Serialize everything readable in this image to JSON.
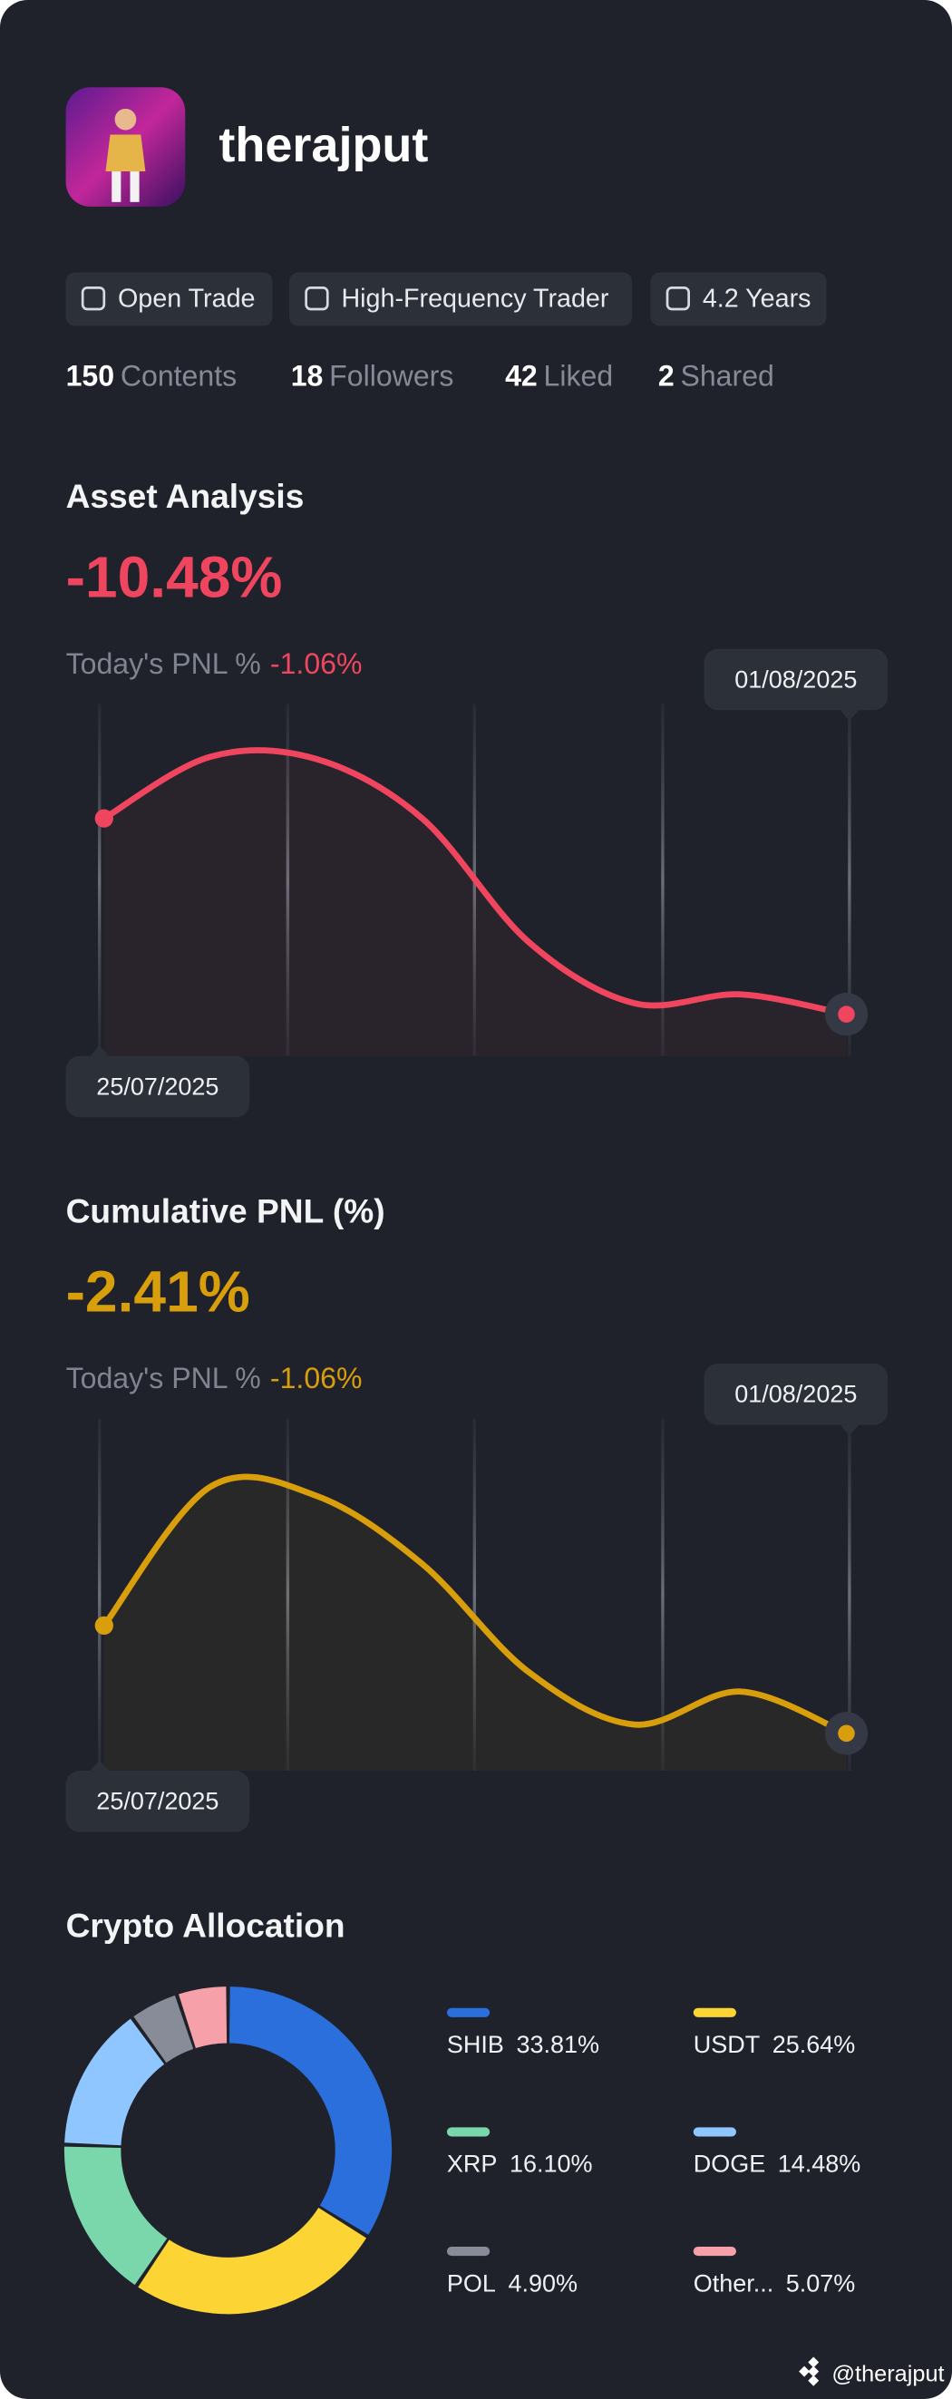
{
  "profile": {
    "username": "therajput",
    "tags": [
      "Open Trade",
      "High-Frequency Trader",
      "4.2 Years"
    ],
    "stats": [
      {
        "count": 150,
        "label": "Contents"
      },
      {
        "count": 18,
        "label": "Followers"
      },
      {
        "count": 42,
        "label": "Liked"
      },
      {
        "count": 2,
        "label": "Shared"
      }
    ]
  },
  "chart_data": [
    {
      "type": "line",
      "title": "Asset Analysis",
      "headline": "-10.48%",
      "today_label": "Today's PNL %",
      "today_value": "-1.06%",
      "color": "#f0455f",
      "categories": [
        "25/07/2025",
        null,
        null,
        null,
        null,
        null,
        null,
        "01/08/2025"
      ],
      "values": [
        -3.2,
        -0.4,
        -0.5,
        -3.2,
        -8.8,
        -11.6,
        -11.2,
        -12.1
      ],
      "ylim": [
        -14,
        2
      ]
    },
    {
      "type": "line",
      "title": "Cumulative PNL (%)",
      "headline": "-2.41%",
      "today_label": "Today's PNL %",
      "today_value": "-1.06%",
      "color": "#d99e0b",
      "categories": [
        "25/07/2025",
        null,
        null,
        null,
        null,
        null,
        null,
        "01/08/2025"
      ],
      "values": [
        -7.4,
        -1.1,
        -1.5,
        -4.6,
        -9.5,
        -11.9,
        -10.4,
        -12.3
      ],
      "ylim": [
        -14,
        2
      ]
    },
    {
      "type": "pie",
      "title": "Crypto Allocation",
      "categories": [
        "SHIB",
        "USDT",
        "XRP",
        "DOGE",
        "POL",
        "Other..."
      ],
      "values": [
        33.81,
        25.64,
        16.1,
        14.48,
        4.9,
        5.07
      ],
      "value_labels": [
        "33.81%",
        "25.64%",
        "16.10%",
        "14.48%",
        "4.90%",
        "5.07%"
      ],
      "colors": [
        "#2a6fdb",
        "#fcd535",
        "#7ad6ab",
        "#8fc6ff",
        "#878c98",
        "#f6a1aa"
      ]
    }
  ],
  "footer": "@therajput"
}
